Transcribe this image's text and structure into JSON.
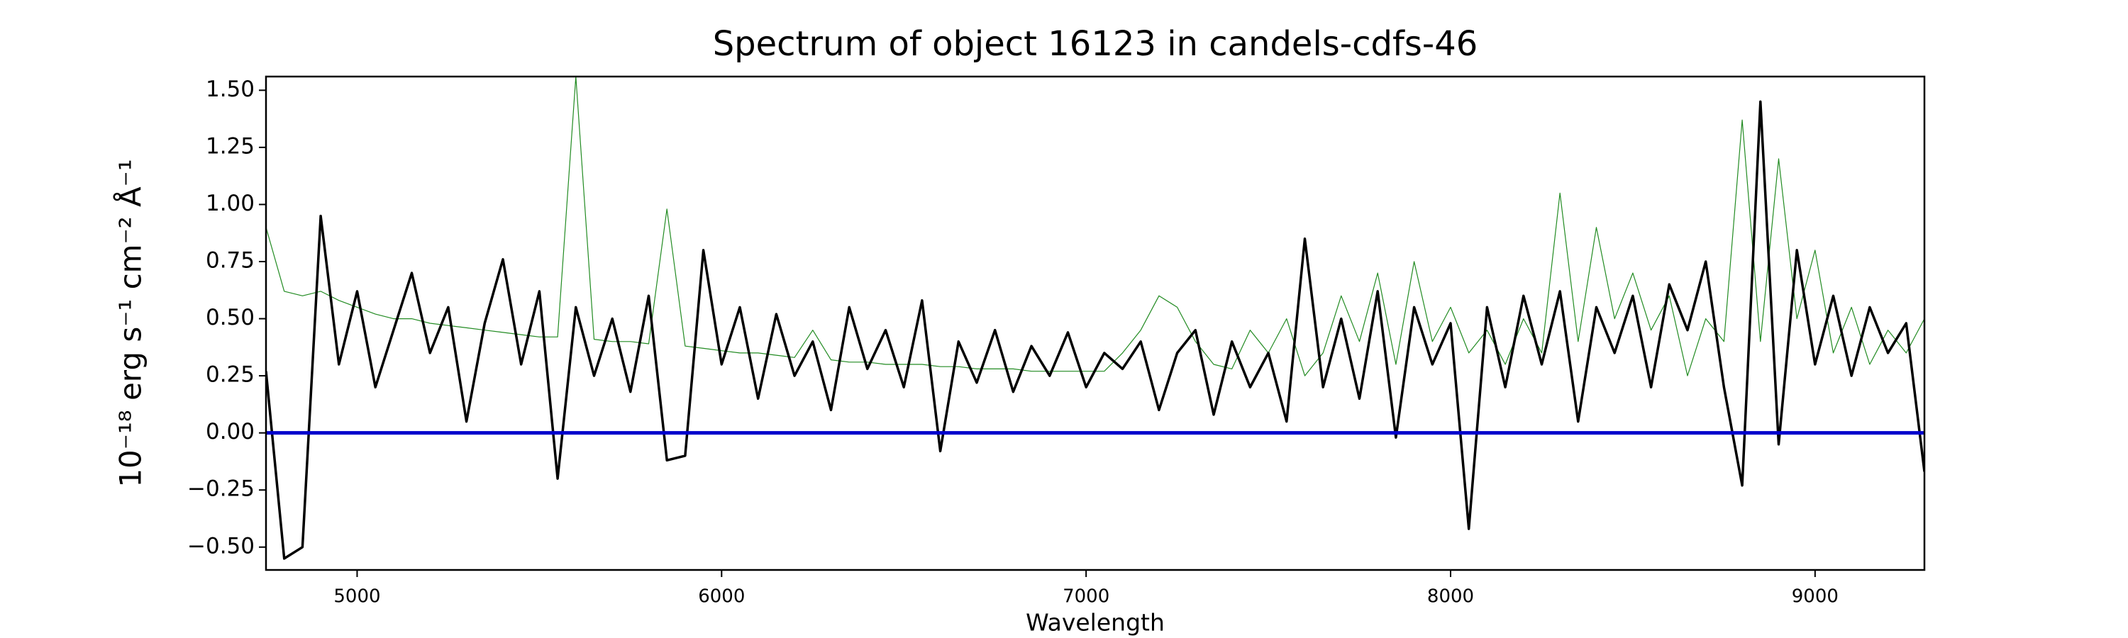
{
  "chart_data": {
    "type": "line",
    "title": "Spectrum of object 16123 in candels-cdfs-46",
    "xlabel": "Wavelength",
    "ylabel": "10⁻¹⁸ erg s⁻¹ cm⁻² Å⁻¹",
    "x": [
      4750,
      4800,
      4850,
      4900,
      4950,
      5000,
      5050,
      5100,
      5150,
      5200,
      5250,
      5300,
      5350,
      5400,
      5450,
      5500,
      5550,
      5600,
      5650,
      5700,
      5750,
      5800,
      5850,
      5900,
      5950,
      6000,
      6050,
      6100,
      6150,
      6200,
      6250,
      6300,
      6350,
      6400,
      6450,
      6500,
      6550,
      6600,
      6650,
      6700,
      6750,
      6800,
      6850,
      6900,
      6950,
      7000,
      7050,
      7100,
      7150,
      7200,
      7250,
      7300,
      7350,
      7400,
      7450,
      7500,
      7550,
      7600,
      7650,
      7700,
      7750,
      7800,
      7850,
      7900,
      7950,
      8000,
      8050,
      8100,
      8150,
      8200,
      8250,
      8300,
      8350,
      8400,
      8450,
      8500,
      8550,
      8600,
      8650,
      8700,
      8750,
      8800,
      8850,
      8900,
      8950,
      9000,
      9050,
      9100,
      9150,
      9200,
      9250,
      9300
    ],
    "series": [
      {
        "color": "#228b22",
        "width": 1.2,
        "values": [
          0.9,
          0.62,
          0.6,
          0.62,
          0.58,
          0.55,
          0.52,
          0.5,
          0.5,
          0.48,
          0.47,
          0.46,
          0.45,
          0.44,
          0.43,
          0.42,
          0.42,
          1.56,
          0.41,
          0.4,
          0.4,
          0.39,
          0.98,
          0.38,
          0.37,
          0.36,
          0.35,
          0.35,
          0.34,
          0.33,
          0.45,
          0.32,
          0.31,
          0.31,
          0.3,
          0.3,
          0.3,
          0.29,
          0.29,
          0.28,
          0.28,
          0.28,
          0.27,
          0.27,
          0.27,
          0.27,
          0.27,
          0.35,
          0.45,
          0.6,
          0.55,
          0.4,
          0.3,
          0.28,
          0.45,
          0.35,
          0.5,
          0.25,
          0.35,
          0.6,
          0.4,
          0.7,
          0.3,
          0.75,
          0.4,
          0.55,
          0.35,
          0.45,
          0.3,
          0.5,
          0.35,
          1.05,
          0.4,
          0.9,
          0.5,
          0.7,
          0.45,
          0.6,
          0.25,
          0.5,
          0.4,
          1.37,
          0.4,
          1.2,
          0.5,
          0.8,
          0.35,
          0.55,
          0.3,
          0.45,
          0.35,
          0.5
        ]
      },
      {
        "color": "#000000",
        "width": 3.5,
        "values": [
          0.27,
          -0.55,
          -0.5,
          0.95,
          0.3,
          0.62,
          0.2,
          0.45,
          0.7,
          0.35,
          0.55,
          0.05,
          0.48,
          0.76,
          0.3,
          0.62,
          -0.2,
          0.55,
          0.25,
          0.5,
          0.18,
          0.6,
          -0.12,
          -0.1,
          0.8,
          0.3,
          0.55,
          0.15,
          0.52,
          0.25,
          0.4,
          0.1,
          0.55,
          0.28,
          0.45,
          0.2,
          0.58,
          -0.08,
          0.4,
          0.22,
          0.45,
          0.18,
          0.38,
          0.25,
          0.44,
          0.2,
          0.35,
          0.28,
          0.4,
          0.1,
          0.35,
          0.45,
          0.08,
          0.4,
          0.2,
          0.35,
          0.05,
          0.85,
          0.2,
          0.5,
          0.15,
          0.62,
          -0.02,
          0.55,
          0.3,
          0.48,
          -0.42,
          0.55,
          0.2,
          0.6,
          0.3,
          0.62,
          0.05,
          0.55,
          0.35,
          0.6,
          0.2,
          0.65,
          0.45,
          0.75,
          0.2,
          -0.23,
          1.45,
          -0.05,
          0.8,
          0.3,
          0.6,
          0.25,
          0.55,
          0.35,
          0.48,
          -0.17
        ]
      }
    ],
    "hline": {
      "value": 0,
      "color": "#0000cc"
    },
    "xlim": [
      4750,
      9300
    ],
    "ylim": [
      -0.6,
      1.56
    ],
    "xticks": [
      5000,
      6000,
      7000,
      8000,
      9000
    ],
    "yticks": [
      {
        "value": -0.5,
        "label": "−0.50"
      },
      {
        "value": -0.25,
        "label": "−0.25"
      },
      {
        "value": 0,
        "label": "0.00"
      },
      {
        "value": 0.25,
        "label": "0.25"
      },
      {
        "value": 0.5,
        "label": "0.50"
      },
      {
        "value": 0.75,
        "label": "0.75"
      },
      {
        "value": 1,
        "label": "1.00"
      },
      {
        "value": 1.25,
        "label": "1.25"
      },
      {
        "value": 1.5,
        "label": "1.50"
      }
    ]
  }
}
